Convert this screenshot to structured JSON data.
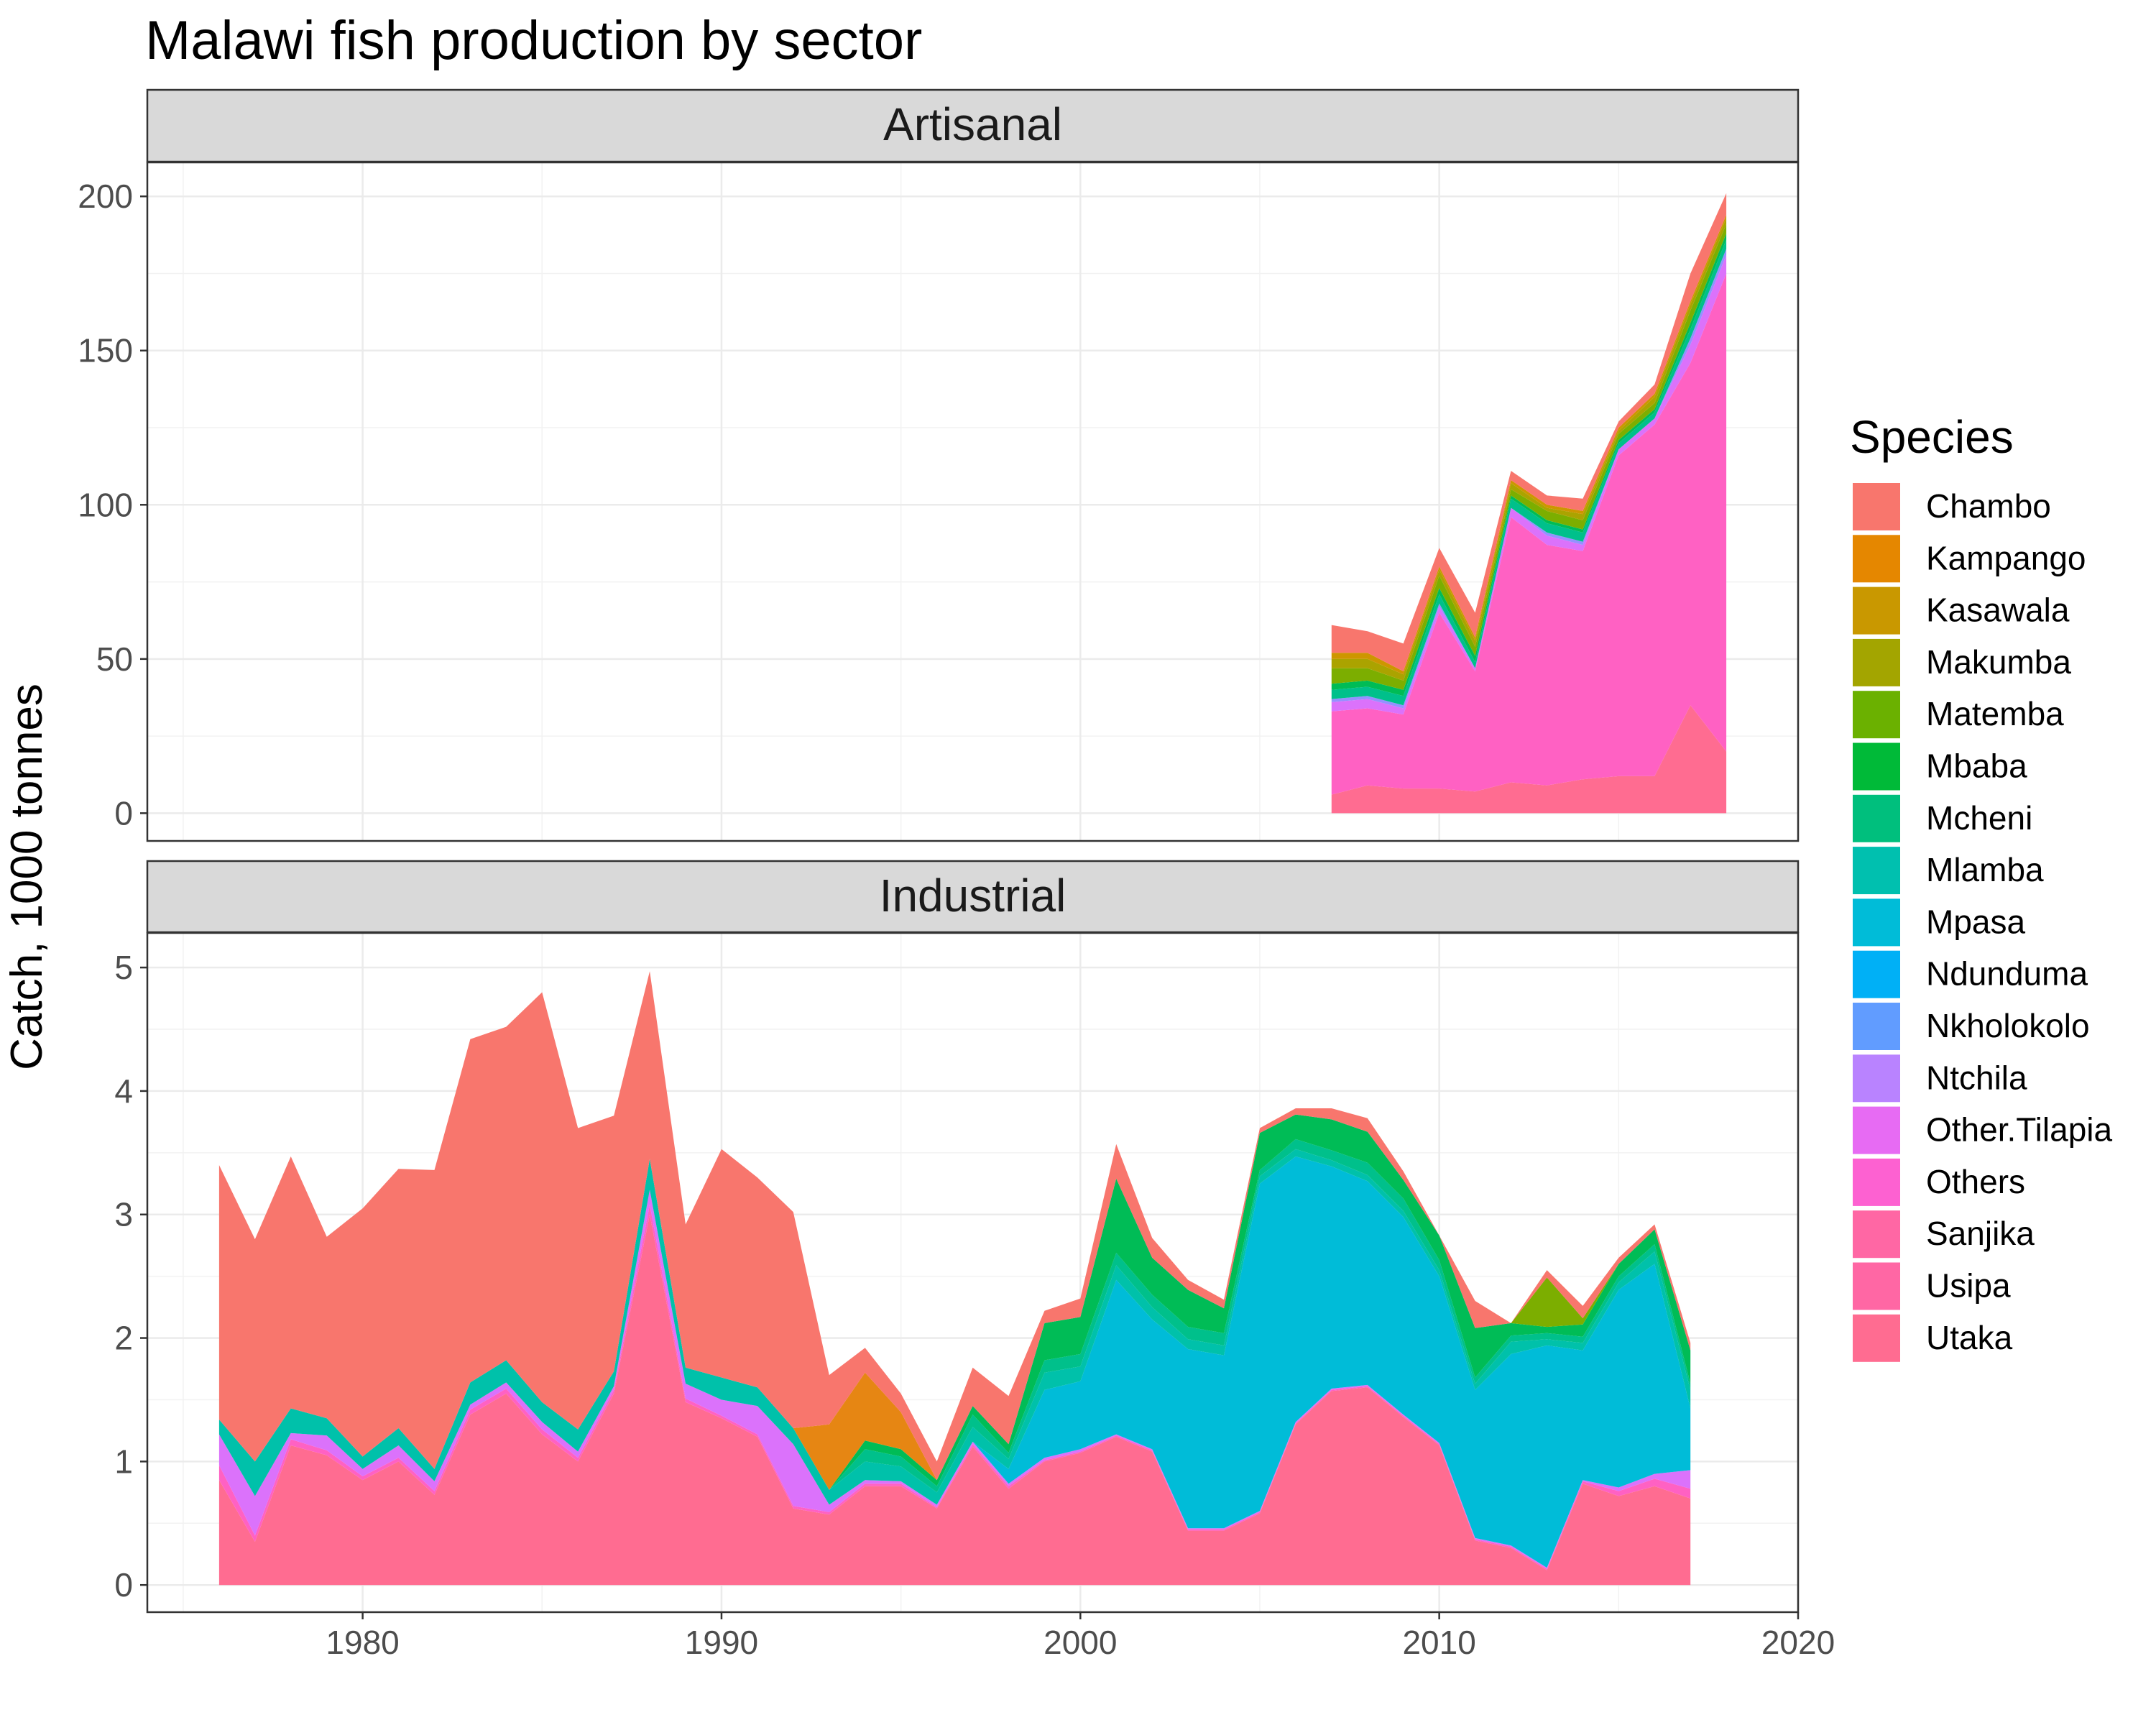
{
  "chart_data": {
    "type": "area",
    "title": "Malawi fish production by sector",
    "ylabel": "Catch, 1000 tonnes",
    "xlabel": "",
    "xlim": [
      1974,
      2020
    ],
    "x_ticks": [
      1980,
      1990,
      2000,
      2010,
      2020
    ],
    "grid": true,
    "legend": {
      "title": "Species",
      "position": "right"
    },
    "species": [
      {
        "name": "Chambo",
        "color": "#F8766D"
      },
      {
        "name": "Kampango",
        "color": "#E58700"
      },
      {
        "name": "Kasawala",
        "color": "#C99800"
      },
      {
        "name": "Makumba",
        "color": "#A3A500"
      },
      {
        "name": "Matemba",
        "color": "#6BB100"
      },
      {
        "name": "Mbaba",
        "color": "#00BA38"
      },
      {
        "name": "Mcheni",
        "color": "#00BF7D"
      },
      {
        "name": "Mlamba",
        "color": "#00C0AF"
      },
      {
        "name": "Mpasa",
        "color": "#00BCD8"
      },
      {
        "name": "Ndunduma",
        "color": "#00B0F6"
      },
      {
        "name": "Nkholokolo",
        "color": "#619CFF"
      },
      {
        "name": "Ntchila",
        "color": "#B983FF"
      },
      {
        "name": "Other.Tilapia",
        "color": "#E76BF3"
      },
      {
        "name": "Others",
        "color": "#FD61D1"
      },
      {
        "name": "Sanjika",
        "color": "#FF67A4"
      },
      {
        "name": "Usipa",
        "color": "#FF67A4"
      },
      {
        "name": "Utaka",
        "color": "#FF6C91"
      }
    ],
    "panels": [
      {
        "title": "Artisanal",
        "ylim": [
          -9,
          211
        ],
        "y_ticks": [
          0,
          50,
          100,
          150,
          200
        ],
        "x": [
          2007,
          2008,
          2009,
          2010,
          2011,
          2012,
          2013,
          2014,
          2015,
          2016,
          2017,
          2018
        ],
        "series": [
          {
            "name": "Utaka",
            "color": "#FF6C91",
            "values": [
              6,
              9,
              8,
              8,
              7,
              10,
              9,
              11,
              12,
              12,
              35,
              20
            ]
          },
          {
            "name": "Usipa",
            "color": "#FF61C3",
            "values": [
              27,
              25,
              24,
              57,
              39,
              86,
              78,
              74,
              104,
              114,
              111,
              155
            ]
          },
          {
            "name": "Others",
            "color": "#DB72FB",
            "values": [
              3,
              3,
              2,
              2,
              1,
              3,
              3,
              2,
              2,
              2,
              6,
              6
            ]
          },
          {
            "name": "Other.Tilapia",
            "color": "#9590FF",
            "values": [
              1,
              1,
              1,
              1,
              0,
              0,
              1,
              1,
              0,
              0,
              2,
              2
            ]
          },
          {
            "name": "Mcheni",
            "color": "#00C08B",
            "values": [
              3,
              3,
              3,
              3,
              2,
              3,
              3,
              3,
              2,
              2,
              3,
              3
            ]
          },
          {
            "name": "Mbaba",
            "color": "#00BC56",
            "values": [
              2,
              2,
              2,
              2,
              2,
              1,
              1,
              1,
              1,
              1,
              2,
              2
            ]
          },
          {
            "name": "Matemba",
            "color": "#7CAE00",
            "values": [
              5,
              4,
              3,
              4,
              3,
              2,
              3,
              3,
              2,
              2,
              4,
              3
            ]
          },
          {
            "name": "Makumba",
            "color": "#ABA300",
            "values": [
              3,
              3,
              2,
              2,
              2,
              2,
              1,
              2,
              1,
              2,
              2,
              2
            ]
          },
          {
            "name": "Kasawala",
            "color": "#CD9600",
            "values": [
              2,
              2,
              1,
              1,
              1,
              1,
              1,
              1,
              1,
              1,
              1,
              1
            ]
          },
          {
            "name": "Chambo",
            "color": "#F8766D",
            "values": [
              9,
              7,
              9,
              6,
              8,
              3,
              3,
              4,
              2,
              3,
              9,
              7
            ]
          }
        ]
      },
      {
        "title": "Industrial",
        "ylim": [
          -0.22,
          5.28
        ],
        "y_ticks": [
          0,
          1,
          2,
          3,
          4,
          5
        ],
        "x": [
          1976,
          1977,
          1978,
          1979,
          1980,
          1981,
          1982,
          1983,
          1984,
          1985,
          1986,
          1987,
          1988,
          1989,
          1990,
          1991,
          1992,
          1993,
          1994,
          1995,
          1996,
          1997,
          1998,
          1999,
          2000,
          2001,
          2002,
          2003,
          2004,
          2005,
          2006,
          2007,
          2008,
          2009,
          2010,
          2011,
          2012,
          2013,
          2014,
          2015,
          2016,
          2017
        ],
        "series": [
          {
            "name": "Utaka",
            "color": "#FF6C91",
            "values": [
              0.85,
              0.35,
              1.13,
              1.05,
              0.85,
              1.0,
              0.73,
              1.38,
              1.55,
              1.22,
              1.0,
              1.55,
              3.0,
              1.48,
              1.35,
              1.2,
              0.62,
              0.57,
              0.8,
              0.8,
              0.62,
              1.12,
              0.78,
              1.0,
              1.07,
              1.2,
              1.08,
              0.44,
              0.44,
              0.58,
              1.3,
              1.57,
              1.6,
              1.36,
              1.13,
              0.36,
              0.3,
              0.12,
              0.82,
              0.72,
              0.8,
              0.7
            ]
          },
          {
            "name": "Usipa",
            "color": "#FF61C3",
            "values": [
              0.12,
              0.05,
              0.05,
              0.04,
              0.03,
              0.03,
              0.03,
              0.04,
              0.04,
              0.04,
              0.03,
              0.03,
              0.08,
              0.03,
              0.02,
              0.02,
              0.02,
              0.02,
              0.02,
              0.02,
              0.01,
              0.02,
              0.02,
              0.01,
              0.01,
              0.01,
              0.01,
              0.01,
              0.01,
              0.01,
              0.01,
              0.01,
              0.01,
              0.01,
              0.01,
              0.01,
              0.01,
              0.01,
              0.02,
              0.04,
              0.06,
              0.08
            ]
          },
          {
            "name": "Others",
            "color": "#DB72FB",
            "values": [
              0.25,
              0.32,
              0.05,
              0.12,
              0.06,
              0.1,
              0.08,
              0.04,
              0.05,
              0.06,
              0.05,
              0.03,
              0.12,
              0.12,
              0.13,
              0.23,
              0.5,
              0.06,
              0.03,
              0.02,
              0.02,
              0.02,
              0.02,
              0.02,
              0.02,
              0.01,
              0.01,
              0.01,
              0.01,
              0.01,
              0.01,
              0.01,
              0.01,
              0.01,
              0.01,
              0.01,
              0.01,
              0.01,
              0.01,
              0.03,
              0.04,
              0.15
            ]
          },
          {
            "name": "Ndunduma",
            "color": "#00BCD8",
            "values": [
              0.0,
              0.0,
              0.0,
              0.0,
              0.0,
              0.0,
              0.0,
              0.0,
              0.0,
              0.0,
              0.0,
              0.0,
              0.0,
              0.0,
              0.0,
              0.0,
              0.0,
              0.0,
              0.0,
              0.0,
              0.0,
              0.0,
              0.12,
              0.55,
              0.55,
              1.25,
              1.05,
              1.45,
              1.4,
              2.65,
              2.15,
              1.8,
              1.65,
              1.6,
              1.35,
              1.2,
              1.55,
              1.8,
              1.05,
              1.6,
              1.7,
              0.5
            ]
          },
          {
            "name": "Mlamba",
            "color": "#00C1AA",
            "values": [
              0.12,
              0.28,
              0.2,
              0.14,
              0.1,
              0.14,
              0.1,
              0.18,
              0.18,
              0.16,
              0.18,
              0.12,
              0.25,
              0.13,
              0.18,
              0.15,
              0.13,
              0.12,
              0.15,
              0.12,
              0.1,
              0.12,
              0.08,
              0.14,
              0.12,
              0.12,
              0.1,
              0.08,
              0.08,
              0.06,
              0.06,
              0.05,
              0.05,
              0.05,
              0.05,
              0.05,
              0.1,
              0.05,
              0.06,
              0.06,
              0.1,
              0.15
            ]
          },
          {
            "name": "Mcheni",
            "color": "#00C08B",
            "values": [
              0.0,
              0.0,
              0.0,
              0.0,
              0.0,
              0.0,
              0.0,
              0.0,
              0.0,
              0.0,
              0.0,
              0.0,
              0.0,
              0.0,
              0.0,
              0.0,
              0.0,
              0.0,
              0.1,
              0.08,
              0.05,
              0.1,
              0.05,
              0.1,
              0.1,
              0.1,
              0.1,
              0.1,
              0.1,
              0.05,
              0.08,
              0.08,
              0.1,
              0.1,
              0.08,
              0.05,
              0.05,
              0.05,
              0.05,
              0.05,
              0.06,
              0.05
            ]
          },
          {
            "name": "Mbaba",
            "color": "#00BC56",
            "values": [
              0.0,
              0.0,
              0.0,
              0.0,
              0.0,
              0.0,
              0.0,
              0.0,
              0.0,
              0.0,
              0.0,
              0.0,
              0.0,
              0.0,
              0.0,
              0.0,
              0.0,
              0.0,
              0.07,
              0.06,
              0.05,
              0.07,
              0.07,
              0.3,
              0.3,
              0.6,
              0.3,
              0.3,
              0.2,
              0.3,
              0.2,
              0.25,
              0.25,
              0.15,
              0.2,
              0.4,
              0.1,
              0.05,
              0.1,
              0.1,
              0.12,
              0.27
            ]
          },
          {
            "name": "Matemba",
            "color": "#7CAE00",
            "values": [
              0.0,
              0.0,
              0.0,
              0.0,
              0.0,
              0.0,
              0.0,
              0.0,
              0.0,
              0.0,
              0.0,
              0.0,
              0.0,
              0.0,
              0.0,
              0.0,
              0.0,
              0.0,
              0.0,
              0.0,
              0.0,
              0.0,
              0.0,
              0.0,
              0.0,
              0.0,
              0.0,
              0.0,
              0.0,
              0.0,
              0.0,
              0.0,
              0.0,
              0.0,
              0.0,
              0.0,
              0.0,
              0.4,
              0.05,
              0.0,
              0.0,
              0.0
            ]
          },
          {
            "name": "Kampango",
            "color": "#E68613",
            "values": [
              0.0,
              0.0,
              0.0,
              0.0,
              0.0,
              0.0,
              0.0,
              0.0,
              0.0,
              0.0,
              0.0,
              0.0,
              0.0,
              0.0,
              0.0,
              0.0,
              0.0,
              0.53,
              0.55,
              0.3,
              0.0,
              0.0,
              0.0,
              0.0,
              0.0,
              0.0,
              0.0,
              0.0,
              0.0,
              0.0,
              0.0,
              0.0,
              0.0,
              0.0,
              0.0,
              0.0,
              0.0,
              0.0,
              0.0,
              0.0,
              0.0,
              0.0
            ]
          },
          {
            "name": "Chambo",
            "color": "#F8766D",
            "values": [
              2.06,
              1.8,
              2.04,
              1.47,
              2.01,
              2.1,
              2.42,
              2.78,
              2.7,
              3.32,
              2.44,
              2.07,
              1.52,
              1.16,
              1.85,
              1.7,
              1.75,
              0.4,
              0.2,
              0.15,
              0.15,
              0.31,
              0.39,
              0.1,
              0.15,
              0.28,
              0.16,
              0.08,
              0.07,
              0.04,
              0.05,
              0.09,
              0.11,
              0.07,
              0.0,
              0.22,
              0.0,
              0.06,
              0.1,
              0.05,
              0.04,
              0.06
            ]
          }
        ]
      }
    ]
  }
}
